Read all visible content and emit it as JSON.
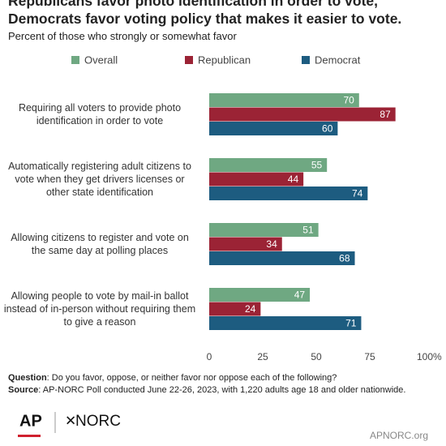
{
  "chart_data": {
    "type": "grouped-horizontal-bar",
    "title": "Republicans favor photo identification in order to vote, Democrats favor voting policy that makes it easier to vote.",
    "subtitle": "Percent of those who strongly or somewhat favor",
    "categories": [
      "Requiring all voters to provide photo identification in order to vote",
      "Automatically registering adult citizens to vote when they get drivers licenses or other state identification",
      "Allowing citizens to register and vote on the same day at polling places",
      "Allowing people to vote by mail-in ballot instead of in-person without requiring them to give a reason"
    ],
    "series": [
      {
        "name": "Overall",
        "color": "#6fa882",
        "values": [
          70,
          55,
          51,
          47
        ]
      },
      {
        "name": "Republican",
        "color": "#9b2335",
        "values": [
          87,
          44,
          34,
          24
        ]
      },
      {
        "name": "Democrat",
        "color": "#1d5c80",
        "values": [
          60,
          74,
          68,
          71
        ]
      }
    ],
    "xlim": [
      0,
      100
    ],
    "xticks": [
      0,
      25,
      50,
      75,
      {
        "value": 100,
        "label": "100%"
      }
    ],
    "notes": {
      "question": {
        "label": "Question",
        "text": ": Do you favor, oppose, or neither favor nor oppose each of the following?"
      },
      "source": {
        "label": "Source",
        "text": ": AP-NORC Poll conducted June 22-26, 2023, with 1,220 adults age 18 and older nationwide."
      }
    },
    "logos": {
      "ap": "AP",
      "norc": "NORC",
      "url": "APNORC.org"
    }
  }
}
